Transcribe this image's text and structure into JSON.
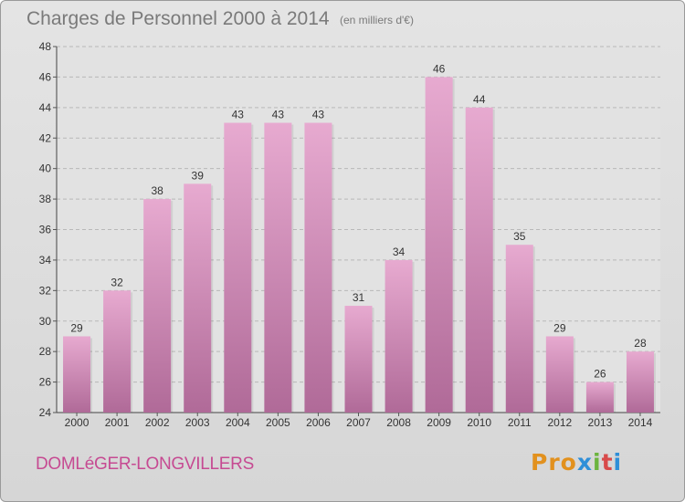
{
  "header": {
    "title": "Charges de Personnel 2000 à 2014",
    "subtitle": "(en milliers d'€)"
  },
  "footer": {
    "commune": "DOMLéGER-LONGVILLERS",
    "brand": "Proxiti",
    "brand_colors": [
      "#e2911e",
      "#e2911e",
      "#e2911e",
      "#2f8fd8",
      "#6cb43f",
      "#d84a4a",
      "#2f8fd8"
    ]
  },
  "colors": {
    "bar_light": "#e7aad0",
    "bar_dark": "#b06a98",
    "grid": "#b8b8b8",
    "plot_bg": "#e2e2e2"
  },
  "chart_data": {
    "type": "bar",
    "categories": [
      "2000",
      "2001",
      "2002",
      "2003",
      "2004",
      "2005",
      "2006",
      "2007",
      "2008",
      "2009",
      "2010",
      "2011",
      "2012",
      "2013",
      "2014"
    ],
    "values": [
      29,
      32,
      38,
      39,
      43,
      43,
      43,
      31,
      34,
      46,
      44,
      35,
      29,
      26,
      28
    ],
    "title": "Charges de Personnel 2000 à 2014",
    "ylim": [
      24,
      48
    ],
    "yticks": [
      24,
      26,
      28,
      30,
      32,
      34,
      36,
      38,
      40,
      42,
      44,
      46,
      48
    ],
    "grid": true,
    "data_labels": true
  }
}
